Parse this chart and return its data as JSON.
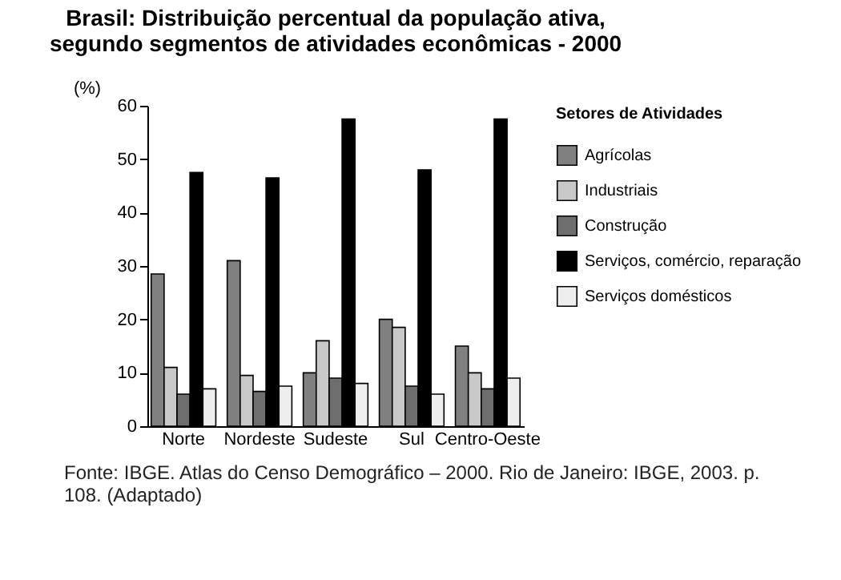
{
  "chart_data": {
    "type": "bar",
    "title": "Brasil: Distribuição percentual da população ativa,\nsegundo segmentos de atividades econômicas - 2000",
    "ylabel": "(%)",
    "legend_title": "Setores de Atividades",
    "categories": [
      "Norte",
      "Nordeste",
      "Sudeste",
      "Sul",
      "Centro-Oeste"
    ],
    "series": [
      {
        "name": "Agrícolas",
        "color": "#808080",
        "values": [
          28.5,
          31,
          10,
          20,
          15
        ]
      },
      {
        "name": "Industriais",
        "color": "#c8c8c8",
        "values": [
          11,
          9.5,
          16,
          18.5,
          10
        ]
      },
      {
        "name": "Construção",
        "color": "#6e6e6e",
        "values": [
          6,
          6.5,
          9,
          7.5,
          7
        ]
      },
      {
        "name": "Serviços, comércio, reparação",
        "color": "#000000",
        "values": [
          47.5,
          46.5,
          57.5,
          48,
          57.5
        ]
      },
      {
        "name": "Serviços domésticos",
        "color": "#eeeeee",
        "values": [
          7,
          7.5,
          8,
          6,
          9
        ]
      }
    ],
    "ylim": [
      0,
      60
    ],
    "yticks": [
      0,
      10,
      20,
      30,
      40,
      50,
      60
    ],
    "grid": false,
    "legend": "right",
    "annotations": [
      "Fonte: IBGE. Atlas do Censo Demográfico – 2000. Rio de Janeiro: IBGE, 2003. p. 108. (Adaptado)"
    ]
  }
}
